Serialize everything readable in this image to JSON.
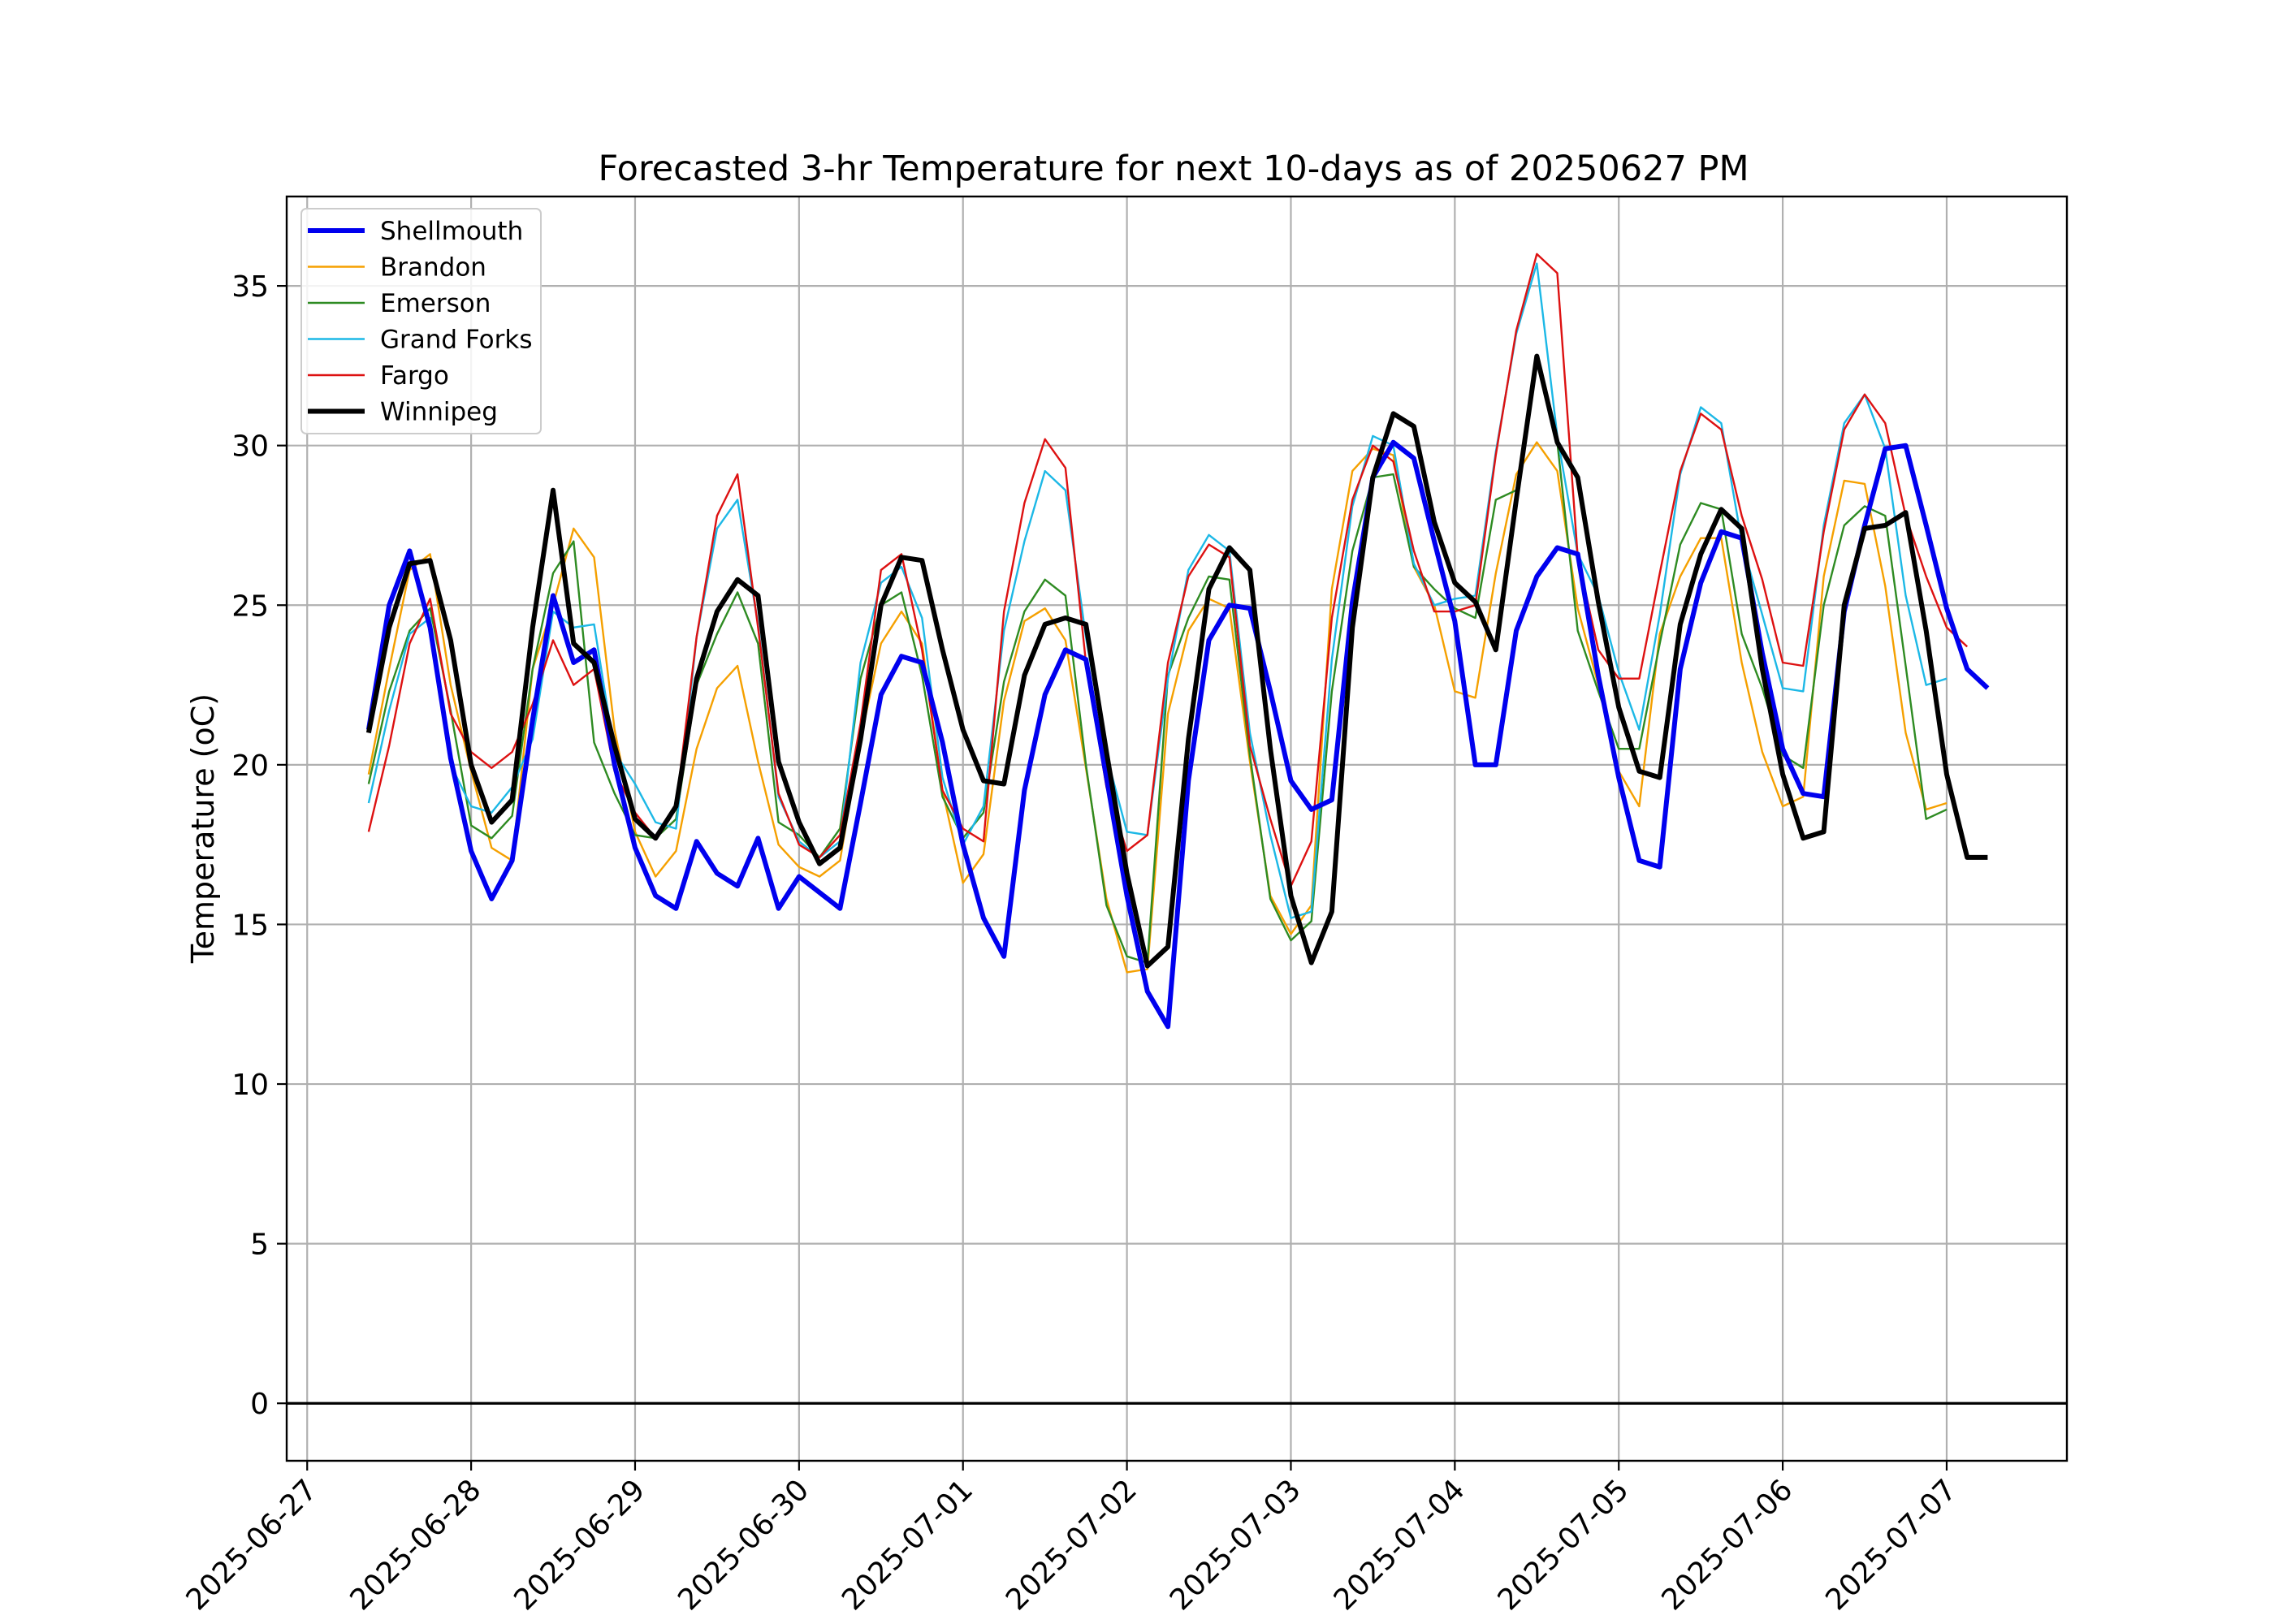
{
  "chart_data": {
    "type": "line",
    "title": "Forecasted 3-hr Temperature for next 10-days as of 20250627 PM",
    "xlabel": "",
    "ylabel": "Temperature (oC)",
    "x_tick_labels": [
      "2025-06-27",
      "2025-06-28",
      "2025-06-29",
      "2025-06-30",
      "2025-07-01",
      "2025-07-02",
      "2025-07-03",
      "2025-07-04",
      "2025-07-05",
      "2025-07-06",
      "2025-07-07"
    ],
    "y_ticks": [
      0,
      5,
      10,
      15,
      20,
      25,
      30,
      35
    ],
    "ylim": [
      -1.8,
      37.8
    ],
    "xlim": [
      "2025-06-26 21:00",
      "2025-07-07 17:36"
    ],
    "x_start": "2025-06-27 09:00",
    "x_step_hours": 3,
    "grid": true,
    "zero_line": true,
    "legend_position": "top-left",
    "series": [
      {
        "name": "Shellmouth",
        "color": "#0000ee",
        "bold": true,
        "values": [
          21.1,
          25.0,
          26.7,
          24.3,
          20.2,
          17.3,
          15.8,
          17.0,
          21.4,
          25.3,
          23.2,
          23.6,
          20.0,
          17.4,
          15.9,
          15.5,
          17.6,
          16.6,
          16.2,
          17.7,
          15.5,
          16.5,
          16.0,
          15.5,
          18.8,
          22.2,
          23.4,
          23.2,
          20.7,
          17.5,
          15.2,
          14.0,
          19.2,
          22.2,
          23.6,
          23.3,
          19.6,
          15.9,
          12.9,
          11.8,
          19.5,
          23.9,
          25.0,
          24.9,
          22.3,
          19.5,
          18.6,
          18.9,
          25.1,
          29.0,
          30.1,
          29.6,
          27.0,
          24.5,
          20.0,
          20.0,
          24.2,
          25.9,
          26.8,
          26.6,
          22.8,
          19.6,
          17.0,
          16.8,
          23.0,
          25.7,
          27.3,
          27.1,
          23.5,
          20.5,
          19.1,
          19.0,
          24.8,
          27.5,
          29.9,
          30.0,
          27.5,
          24.9,
          23.0,
          22.4
        ]
      },
      {
        "name": "Brandon",
        "color": "#f5a000",
        "bold": false,
        "values": [
          19.7,
          23.0,
          26.1,
          26.6,
          22.5,
          19.8,
          17.4,
          17.0,
          23.0,
          25.0,
          27.4,
          26.5,
          21.1,
          17.9,
          16.5,
          17.3,
          20.5,
          22.4,
          23.1,
          20.1,
          17.5,
          16.8,
          16.5,
          17.0,
          20.8,
          23.8,
          24.8,
          23.8,
          19.2,
          16.3,
          17.2,
          22.0,
          24.5,
          24.9,
          23.9,
          19.9,
          15.8,
          13.5,
          13.6,
          21.6,
          24.2,
          25.2,
          24.9,
          20.1,
          15.9,
          14.7,
          15.6,
          25.5,
          29.2,
          29.9,
          29.7,
          26.2,
          25.0,
          22.3,
          22.1,
          26.0,
          29.1,
          30.1,
          29.2,
          24.9,
          22.5,
          19.8,
          18.7,
          24.1,
          25.9,
          27.1,
          27.1,
          23.2,
          20.4,
          18.7,
          19.0,
          25.9,
          28.9,
          28.8,
          25.6,
          21.0,
          18.6,
          18.8
        ]
      },
      {
        "name": "Emerson",
        "color": "#2e8b22",
        "bold": false,
        "values": [
          19.4,
          22.3,
          24.2,
          24.9,
          21.7,
          18.1,
          17.7,
          18.4,
          23.0,
          26.0,
          27.0,
          20.7,
          19.1,
          17.8,
          17.7,
          18.3,
          22.5,
          24.1,
          25.4,
          23.8,
          18.2,
          17.8,
          17.1,
          18.0,
          22.7,
          25.0,
          25.4,
          22.8,
          19.0,
          17.7,
          18.5,
          22.6,
          24.8,
          25.8,
          25.3,
          20.0,
          15.6,
          14.0,
          13.8,
          22.8,
          24.6,
          25.9,
          25.8,
          20.3,
          15.8,
          14.5,
          15.1,
          22.3,
          26.7,
          29.0,
          29.1,
          26.2,
          25.5,
          24.9,
          24.6,
          28.3,
          28.6,
          32.6,
          30.1,
          24.2,
          22.3,
          20.5,
          20.5,
          23.8,
          26.9,
          28.2,
          28.0,
          24.1,
          22.4,
          20.3,
          19.9,
          25.0,
          27.5,
          28.1,
          27.8,
          23.1,
          18.3,
          18.6
        ]
      },
      {
        "name": "Grand Forks",
        "color": "#1cb8e6",
        "bold": false,
        "values": [
          18.8,
          21.7,
          24.1,
          24.6,
          20.0,
          18.7,
          18.5,
          19.3,
          20.8,
          24.8,
          24.3,
          24.4,
          20.4,
          19.4,
          18.2,
          18.0,
          24.0,
          27.4,
          28.3,
          24.4,
          19.0,
          17.6,
          17.1,
          17.6,
          23.2,
          25.7,
          26.2,
          24.6,
          19.6,
          17.5,
          18.7,
          24.2,
          27.0,
          29.2,
          28.6,
          24.0,
          20.3,
          17.9,
          17.8,
          22.7,
          26.1,
          27.2,
          26.7,
          21.0,
          17.8,
          15.2,
          15.4,
          23.3,
          28.1,
          30.3,
          30.0,
          26.3,
          25.0,
          25.2,
          25.3,
          29.8,
          33.5,
          35.7,
          30.3,
          26.6,
          25.3,
          22.9,
          21.1,
          24.7,
          29.1,
          31.2,
          30.7,
          27.0,
          24.7,
          22.4,
          22.3,
          27.5,
          30.7,
          31.6,
          29.9,
          25.3,
          22.5,
          22.7
        ]
      },
      {
        "name": "Fargo",
        "color": "#dd1111",
        "bold": false,
        "values": [
          17.9,
          20.6,
          23.8,
          25.2,
          21.6,
          20.4,
          19.9,
          20.4,
          21.9,
          23.9,
          22.5,
          23.0,
          19.8,
          18.5,
          17.7,
          18.7,
          24.0,
          27.8,
          29.1,
          24.3,
          19.1,
          17.5,
          17.1,
          17.8,
          21.3,
          26.1,
          26.6,
          23.6,
          19.2,
          18.0,
          17.6,
          24.8,
          28.2,
          30.2,
          29.3,
          23.2,
          19.3,
          17.3,
          17.8,
          23.2,
          25.9,
          26.9,
          26.5,
          20.6,
          18.3,
          16.2,
          17.6,
          24.6,
          28.3,
          30.0,
          29.5,
          26.7,
          24.8,
          24.8,
          25.0,
          29.7,
          33.6,
          36.0,
          35.4,
          26.5,
          23.6,
          22.7,
          22.7,
          26.0,
          29.2,
          31.0,
          30.5,
          27.8,
          25.8,
          23.2,
          23.1,
          27.3,
          30.5,
          31.6,
          30.7,
          27.8,
          25.9,
          24.3,
          23.7
        ]
      },
      {
        "name": "Winnipeg",
        "color": "#000000",
        "bold": true,
        "values": [
          21.0,
          24.3,
          26.3,
          26.4,
          23.9,
          20.0,
          18.2,
          18.9,
          24.3,
          28.6,
          23.8,
          23.2,
          20.6,
          18.3,
          17.7,
          18.7,
          22.7,
          24.8,
          25.8,
          25.3,
          20.1,
          18.2,
          16.9,
          17.4,
          20.8,
          25.0,
          26.5,
          26.4,
          23.6,
          21.1,
          19.5,
          19.4,
          22.8,
          24.4,
          24.6,
          24.4,
          20.4,
          16.6,
          13.7,
          14.3,
          20.8,
          25.5,
          26.8,
          26.1,
          20.5,
          15.9,
          13.8,
          15.4,
          24.3,
          29.0,
          31.0,
          30.6,
          27.6,
          25.7,
          25.1,
          23.6,
          28.3,
          32.8,
          30.1,
          29.0,
          25.1,
          21.8,
          19.8,
          19.6,
          24.4,
          26.6,
          28.0,
          27.4,
          23.0,
          19.7,
          17.7,
          17.9,
          25.0,
          27.4,
          27.5,
          27.9,
          24.2,
          19.7,
          17.1,
          17.1
        ]
      }
    ]
  }
}
